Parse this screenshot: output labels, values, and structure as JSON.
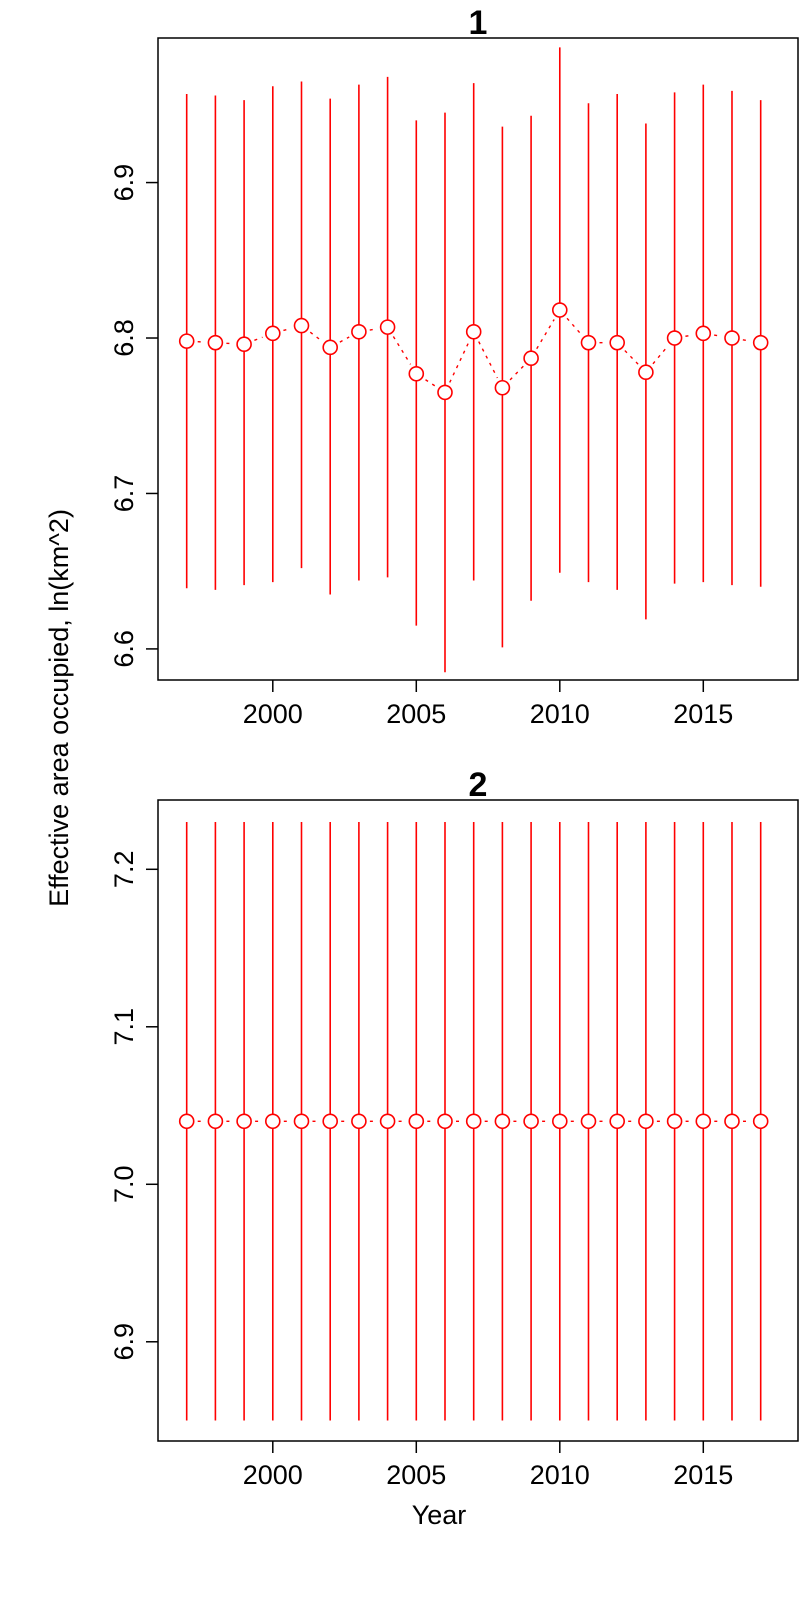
{
  "figure": {
    "ylabel": "Effective area occupied, ln(km^2)",
    "xlabel": "Year"
  },
  "chart_data": [
    {
      "type": "scatter",
      "title": "1",
      "xlabel": "Year",
      "ylabel": "Effective area occupied, ln(km^2)",
      "color": "#ff0000",
      "xlim": [
        1996.0,
        2018.3
      ],
      "ylim": [
        6.58,
        6.993
      ],
      "x_ticks": [
        2000,
        2005,
        2010,
        2015
      ],
      "y_ticks": [
        6.6,
        6.7,
        6.8,
        6.9
      ],
      "x": [
        1997,
        1998,
        1999,
        2000,
        2001,
        2002,
        2003,
        2004,
        2005,
        2006,
        2007,
        2008,
        2009,
        2010,
        2011,
        2012,
        2013,
        2014,
        2015,
        2016,
        2017
      ],
      "y": [
        6.798,
        6.797,
        6.796,
        6.803,
        6.808,
        6.794,
        6.804,
        6.807,
        6.777,
        6.765,
        6.804,
        6.768,
        6.787,
        6.818,
        6.797,
        6.797,
        6.778,
        6.8,
        6.803,
        6.8,
        6.797
      ],
      "y_lower": [
        6.639,
        6.638,
        6.641,
        6.643,
        6.652,
        6.635,
        6.644,
        6.646,
        6.615,
        6.585,
        6.644,
        6.601,
        6.631,
        6.649,
        6.643,
        6.638,
        6.619,
        6.642,
        6.643,
        6.641,
        6.64
      ],
      "y_upper": [
        6.957,
        6.956,
        6.953,
        6.962,
        6.965,
        6.954,
        6.963,
        6.968,
        6.94,
        6.945,
        6.964,
        6.936,
        6.943,
        6.987,
        6.951,
        6.957,
        6.938,
        6.958,
        6.963,
        6.959,
        6.953
      ],
      "grid": false,
      "legend": "none"
    },
    {
      "type": "scatter",
      "title": "2",
      "xlabel": "Year",
      "ylabel": "Effective area occupied, ln(km^2)",
      "color": "#ff0000",
      "xlim": [
        1996.0,
        2018.3
      ],
      "ylim": [
        6.837,
        7.244
      ],
      "x_ticks": [
        2000,
        2005,
        2010,
        2015
      ],
      "y_ticks": [
        6.9,
        7.0,
        7.1,
        7.2
      ],
      "x": [
        1997,
        1998,
        1999,
        2000,
        2001,
        2002,
        2003,
        2004,
        2005,
        2006,
        2007,
        2008,
        2009,
        2010,
        2011,
        2012,
        2013,
        2014,
        2015,
        2016,
        2017
      ],
      "y": [
        7.04,
        7.04,
        7.04,
        7.04,
        7.04,
        7.04,
        7.04,
        7.04,
        7.04,
        7.04,
        7.04,
        7.04,
        7.04,
        7.04,
        7.04,
        7.04,
        7.04,
        7.04,
        7.04,
        7.04,
        7.04
      ],
      "y_lower": [
        6.85,
        6.85,
        6.85,
        6.85,
        6.85,
        6.85,
        6.85,
        6.85,
        6.85,
        6.85,
        6.85,
        6.85,
        6.85,
        6.85,
        6.85,
        6.85,
        6.85,
        6.85,
        6.85,
        6.85,
        6.85
      ],
      "y_upper": [
        7.23,
        7.23,
        7.23,
        7.23,
        7.23,
        7.23,
        7.23,
        7.23,
        7.23,
        7.23,
        7.23,
        7.23,
        7.23,
        7.23,
        7.23,
        7.23,
        7.23,
        7.23,
        7.23,
        7.23,
        7.23
      ],
      "grid": false,
      "legend": "none"
    }
  ]
}
